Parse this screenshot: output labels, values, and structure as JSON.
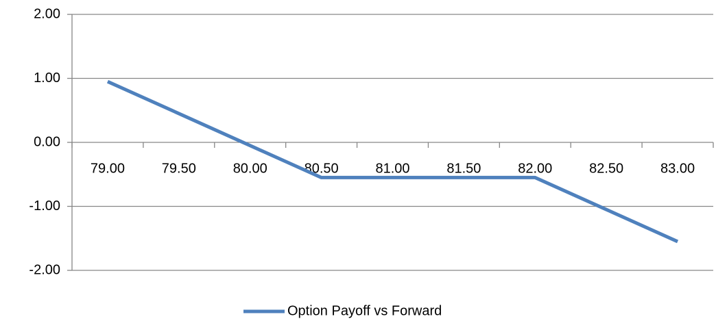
{
  "chart_data": {
    "type": "line",
    "categories": [
      "79.00",
      "79.50",
      "80.00",
      "80.50",
      "81.00",
      "81.50",
      "82.00",
      "82.50",
      "83.00"
    ],
    "series": [
      {
        "name": "Option Payoff vs Forward",
        "color": "#4f81bd",
        "values": [
          0.95,
          0.45,
          -0.05,
          -0.55,
          -0.55,
          -0.55,
          -0.55,
          -1.05,
          -1.55
        ]
      }
    ],
    "ylim": [
      -2,
      2
    ],
    "yticks": [
      {
        "value": -2,
        "label": "-2.00"
      },
      {
        "value": -1,
        "label": "-1.00"
      },
      {
        "value": 0,
        "label": "0.00"
      },
      {
        "value": 1,
        "label": "1.00"
      },
      {
        "value": 2,
        "label": "2.00"
      }
    ],
    "grid": true,
    "legend": "bottom"
  }
}
